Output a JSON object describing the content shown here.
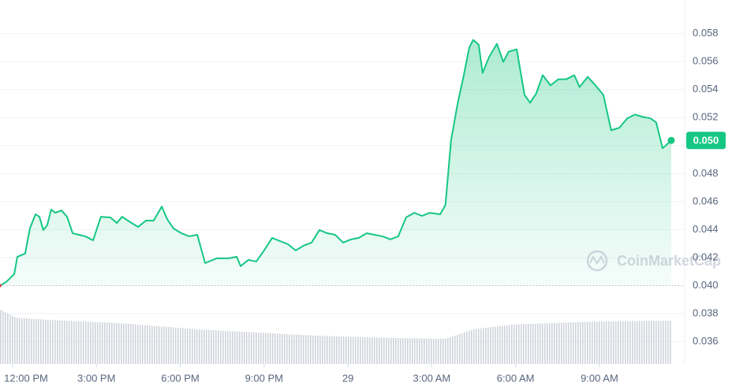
{
  "chart_data": {
    "type": "area",
    "watermark": "CoinMarketCap",
    "color": "#16c784",
    "x": [
      11.55,
      11.78,
      12.06,
      12.17,
      12.45,
      12.62,
      12.82,
      12.96,
      13.1,
      13.24,
      13.38,
      13.53,
      13.75,
      13.95,
      14.15,
      14.37,
      14.6,
      14.88,
      15.16,
      15.5,
      15.73,
      15.92,
      16.21,
      16.49,
      16.77,
      17.05,
      17.34,
      17.53,
      17.76,
      18.04,
      18.32,
      18.61,
      18.89,
      19.31,
      19.73,
      20.02,
      20.16,
      20.44,
      20.72,
      21.0,
      21.29,
      21.57,
      21.85,
      22.13,
      22.41,
      22.7,
      22.98,
      23.26,
      23.54,
      23.83,
      24.11,
      24.39,
      24.67,
      24.95,
      25.24,
      25.52,
      25.8,
      26.08,
      26.37,
      26.65,
      26.93,
      27.3,
      27.49,
      27.69,
      27.92,
      28.14,
      28.34,
      28.48,
      28.68,
      28.82,
      29.05,
      29.33,
      29.56,
      29.75,
      30.04,
      30.32,
      30.52,
      30.74,
      30.97,
      31.25,
      31.53,
      31.81,
      32.1,
      32.29,
      32.58,
      32.86,
      33.14,
      33.42,
      33.71,
      33.99,
      34.27,
      34.55,
      34.83,
      35.03,
      35.26,
      35.57
    ],
    "values": [
      0.04,
      0.04027,
      0.04083,
      0.04206,
      0.04229,
      0.04408,
      0.04509,
      0.04492,
      0.04397,
      0.04431,
      0.04543,
      0.0452,
      0.04537,
      0.04492,
      0.04374,
      0.04363,
      0.04352,
      0.04324,
      0.04492,
      0.04487,
      0.04447,
      0.04492,
      0.04453,
      0.04419,
      0.04464,
      0.04464,
      0.04565,
      0.04475,
      0.04408,
      0.04374,
      0.04352,
      0.04363,
      0.04161,
      0.04195,
      0.04195,
      0.04206,
      0.04139,
      0.04184,
      0.04172,
      0.04251,
      0.04341,
      0.04318,
      0.04296,
      0.04251,
      0.04285,
      0.04307,
      0.04397,
      0.04374,
      0.04363,
      0.04307,
      0.0433,
      0.04341,
      0.04374,
      0.04363,
      0.04352,
      0.0433,
      0.04352,
      0.04487,
      0.0452,
      0.04498,
      0.0452,
      0.04509,
      0.04577,
      0.05037,
      0.05295,
      0.05497,
      0.05699,
      0.05755,
      0.05721,
      0.05519,
      0.05632,
      0.05727,
      0.05598,
      0.05671,
      0.05688,
      0.05362,
      0.05306,
      0.05373,
      0.05503,
      0.0543,
      0.05474,
      0.05474,
      0.05503,
      0.05418,
      0.05491,
      0.0543,
      0.05362,
      0.0511,
      0.05127,
      0.05194,
      0.05222,
      0.05205,
      0.05194,
      0.05166,
      0.04981,
      0.05037
    ],
    "current_price": {
      "value": 0.05037,
      "label": "0.050"
    },
    "xlim": [
      11.55,
      36.05
    ],
    "xticks": [
      {
        "value": 12,
        "label": "12:00 PM"
      },
      {
        "value": 15,
        "label": "3:00 PM"
      },
      {
        "value": 18,
        "label": "6:00 PM"
      },
      {
        "value": 21,
        "label": "9:00 PM"
      },
      {
        "value": 24,
        "label": "29"
      },
      {
        "value": 27,
        "label": "3:00 AM"
      },
      {
        "value": 30,
        "label": "6:00 AM"
      },
      {
        "value": 33,
        "label": "9:00 AM"
      }
    ],
    "ylim": [
      0.0344,
      0.0604
    ],
    "yticks": [
      0.036,
      0.038,
      {
        "value": 0.04,
        "label": "0.040"
      },
      0.042,
      0.044,
      0.046,
      0.048,
      {
        "value": 0.05,
        "label": "0.050"
      },
      0.052,
      0.054,
      0.056,
      0.058
    ],
    "grid": true
  }
}
